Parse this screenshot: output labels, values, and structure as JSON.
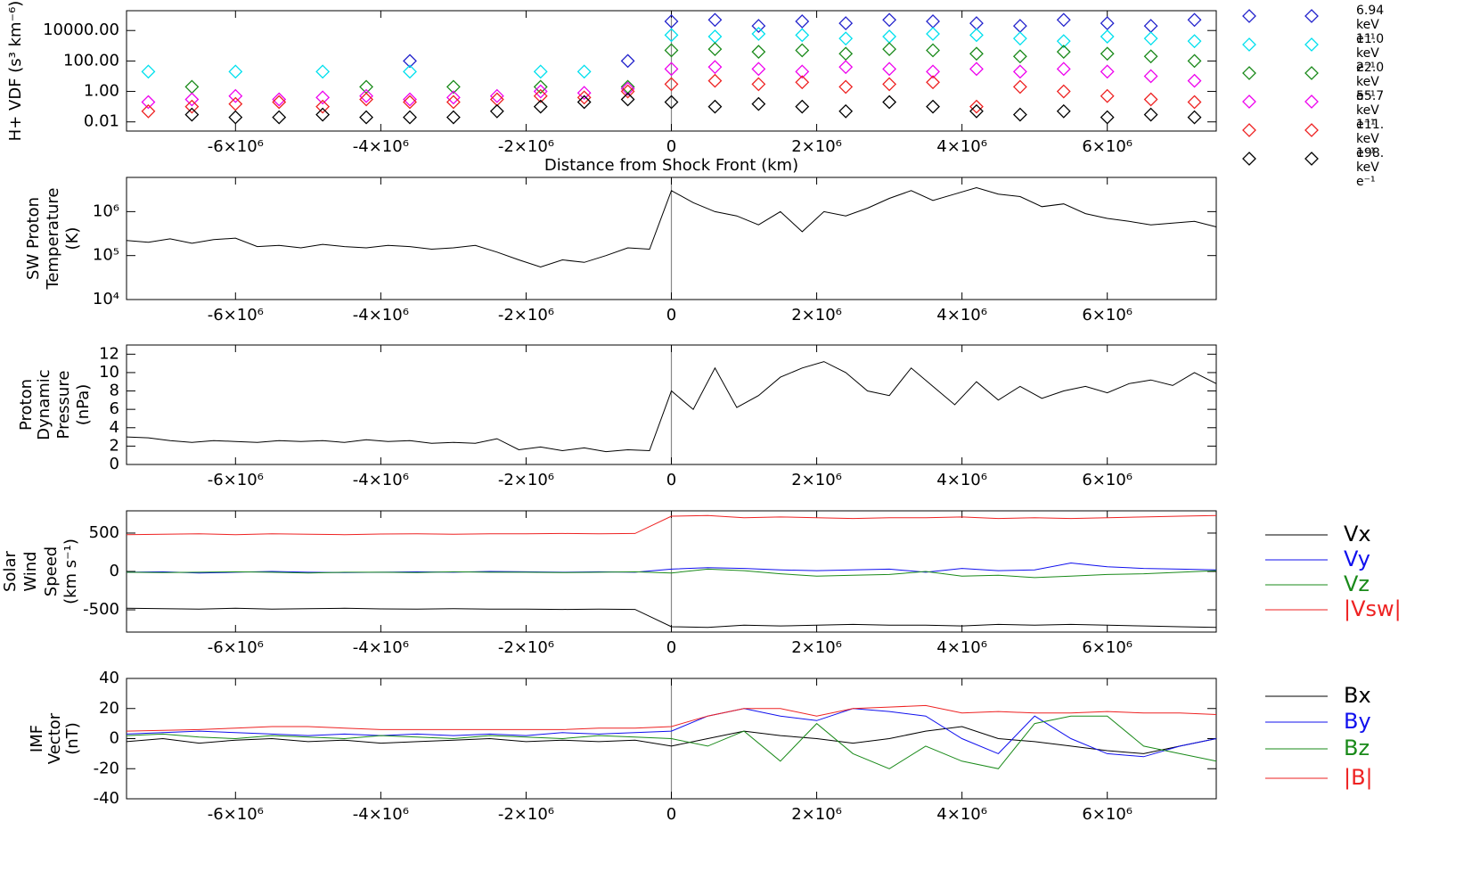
{
  "chart_data": [
    {
      "type": "scatter",
      "log_y": true,
      "y_label": [
        "H+ VDF (s³ km⁻⁶)"
      ],
      "x_label": "Distance from Shock Front (km)",
      "xlim": [
        -7500000.0,
        7500000.0
      ],
      "xticks": [
        {
          "value": -6000000.0,
          "label": "-6×10⁶"
        },
        {
          "value": -4000000.0,
          "label": "-4×10⁶"
        },
        {
          "value": -2000000.0,
          "label": "-2×10⁶"
        },
        0,
        {
          "value": 2000000.0,
          "label": "2×10⁶"
        },
        {
          "value": 4000000.0,
          "label": "4×10⁶"
        },
        {
          "value": 6000000.0,
          "label": "6×10⁶"
        }
      ],
      "ylim": [
        0.0025,
        200000
      ],
      "yticks": [
        0.01,
        {
          "value": 1,
          "label": "1.00"
        },
        {
          "value": 100,
          "label": "100.00"
        },
        {
          "value": 10000,
          "label": "10000.00"
        }
      ],
      "x": [
        -7200000.0,
        -6600000.0,
        -6000000.0,
        -5400000.0,
        -4800000.0,
        -4200000.0,
        -3600000.0,
        -3000000.0,
        -2400000.0,
        -1800000.0,
        -1200000.0,
        -600000.0,
        0,
        600000.0,
        1200000.0,
        1800000.0,
        2400000.0,
        3000000.0,
        3600000.0,
        4200000.0,
        4800000.0,
        5400000.0,
        6000000.0,
        6600000.0,
        7200000.0
      ],
      "series": [
        {
          "name": "6.94 keV e⁻¹",
          "color": "#2222cc",
          "values": [
            null,
            null,
            null,
            null,
            null,
            null,
            100,
            null,
            null,
            null,
            null,
            100,
            40000,
            50000,
            20000,
            40000,
            30000,
            50000,
            40000,
            30000,
            20000,
            50000,
            30000,
            20000,
            50000
          ]
        },
        {
          "name": "11.0 keV e⁻¹",
          "color": "#00e0ee",
          "values": [
            20,
            null,
            20,
            null,
            20,
            null,
            20,
            null,
            null,
            20,
            20,
            null,
            5000,
            4000,
            6000,
            5000,
            3000,
            4000,
            6000,
            5000,
            3000,
            2000,
            4000,
            3000,
            2000
          ]
        },
        {
          "name": "22.0 keV e⁻¹",
          "color": "#1a8a1a",
          "values": [
            null,
            2,
            null,
            null,
            null,
            2,
            null,
            2,
            null,
            2,
            null,
            2,
            500,
            600,
            400,
            500,
            300,
            600,
            500,
            300,
            200,
            400,
            300,
            200,
            100
          ]
        },
        {
          "name": "55.7 keV e⁻¹",
          "color": "#ee00ee",
          "values": [
            0.2,
            0.3,
            0.5,
            0.3,
            0.4,
            0.5,
            0.3,
            0.4,
            0.5,
            1,
            0.8,
            1.5,
            30,
            40,
            30,
            20,
            40,
            30,
            20,
            30,
            20,
            30,
            20,
            10,
            5
          ]
        },
        {
          "name": "111. keV e⁻¹",
          "color": "#ee2222",
          "values": [
            0.05,
            0.1,
            0.15,
            0.2,
            0.1,
            0.3,
            0.2,
            0.2,
            0.3,
            0.5,
            0.4,
            1,
            3,
            5,
            3,
            4,
            2,
            3,
            4,
            0.1,
            2,
            1,
            0.5,
            0.3,
            0.2
          ]
        },
        {
          "name": "198. keV e⁻¹",
          "color": "#000000",
          "values": [
            null,
            0.03,
            0.02,
            0.02,
            0.03,
            0.02,
            0.02,
            0.02,
            0.05,
            0.1,
            0.2,
            0.3,
            0.2,
            0.1,
            0.15,
            0.1,
            0.05,
            0.2,
            0.1,
            0.05,
            0.03,
            0.05,
            0.02,
            0.03,
            0.02
          ]
        }
      ]
    },
    {
      "type": "line",
      "log_y": true,
      "y_label": [
        "SW Proton",
        "Temperature",
        "(K)"
      ],
      "xlim": [
        -7500000.0,
        7500000.0
      ],
      "xticks": [
        {
          "value": -6000000.0,
          "label": "-6×10⁶"
        },
        {
          "value": -4000000.0,
          "label": "-4×10⁶"
        },
        {
          "value": -2000000.0,
          "label": "-2×10⁶"
        },
        0,
        {
          "value": 2000000.0,
          "label": "2×10⁶"
        },
        {
          "value": 4000000.0,
          "label": "4×10⁶"
        },
        {
          "value": 6000000.0,
          "label": "6×10⁶"
        }
      ],
      "ylim": [
        10000,
        6000000
      ],
      "yticks": [
        {
          "value": 10000,
          "label": "10⁴"
        },
        {
          "value": 100000,
          "label": "10⁵"
        },
        {
          "value": 1000000,
          "label": "10⁶"
        }
      ],
      "x": [
        -7500000.0,
        -7200000.0,
        -6900000.0,
        -6600000.0,
        -6300000.0,
        -6000000.0,
        -5700000.0,
        -5400000.0,
        -5100000.0,
        -4800000.0,
        -4500000.0,
        -4200000.0,
        -3900000.0,
        -3600000.0,
        -3300000.0,
        -3000000.0,
        -2700000.0,
        -2400000.0,
        -2100000.0,
        -1800000.0,
        -1500000.0,
        -1200000.0,
        -900000.0,
        -600000.0,
        -300000.0,
        0,
        300000.0,
        600000.0,
        900000.0,
        1200000.0,
        1500000.0,
        1800000.0,
        2100000.0,
        2400000.0,
        2700000.0,
        3000000.0,
        3300000.0,
        3600000.0,
        3900000.0,
        4200000.0,
        4500000.0,
        4800000.0,
        5100000.0,
        5400000.0,
        5700000.0,
        6000000.0,
        6300000.0,
        6600000.0,
        6900000.0,
        7200000.0,
        7500000.0
      ],
      "series": [
        {
          "color": "#000000",
          "values": [
            220000.0,
            200000.0,
            240000.0,
            190000.0,
            230000.0,
            250000.0,
            160000.0,
            170000.0,
            150000.0,
            180000.0,
            160000.0,
            150000.0,
            170000.0,
            160000.0,
            140000.0,
            150000.0,
            170000.0,
            120000.0,
            80000.0,
            55000.0,
            80000.0,
            70000.0,
            100000.0,
            150000.0,
            140000.0,
            3000000.0,
            1600000.0,
            1000000.0,
            800000.0,
            500000.0,
            1000000.0,
            350000.0,
            1000000.0,
            800000.0,
            1200000.0,
            2000000.0,
            3000000.0,
            1800000.0,
            2500000.0,
            3500000.0,
            2500000.0,
            2200000.0,
            1300000.0,
            1500000.0,
            900000.0,
            700000.0,
            600000.0,
            500000.0,
            550000.0,
            600000.0,
            450000.0
          ]
        }
      ]
    },
    {
      "type": "line",
      "y_label": [
        "Proton",
        "Dynamic",
        "Pressure",
        "(nPa)"
      ],
      "xlim": [
        -7500000.0,
        7500000.0
      ],
      "xticks": [
        {
          "value": -6000000.0,
          "label": "-6×10⁶"
        },
        {
          "value": -4000000.0,
          "label": "-4×10⁶"
        },
        {
          "value": -2000000.0,
          "label": "-2×10⁶"
        },
        0,
        {
          "value": 2000000.0,
          "label": "2×10⁶"
        },
        {
          "value": 4000000.0,
          "label": "4×10⁶"
        },
        {
          "value": 6000000.0,
          "label": "6×10⁶"
        }
      ],
      "ylim": [
        0,
        13
      ],
      "yticks": [
        0,
        2,
        4,
        6,
        8,
        10,
        12
      ],
      "x": [
        -7500000.0,
        -7200000.0,
        -6900000.0,
        -6600000.0,
        -6300000.0,
        -6000000.0,
        -5700000.0,
        -5400000.0,
        -5100000.0,
        -4800000.0,
        -4500000.0,
        -4200000.0,
        -3900000.0,
        -3600000.0,
        -3300000.0,
        -3000000.0,
        -2700000.0,
        -2400000.0,
        -2100000.0,
        -1800000.0,
        -1500000.0,
        -1200000.0,
        -900000.0,
        -600000.0,
        -300000.0,
        0,
        300000.0,
        600000.0,
        900000.0,
        1200000.0,
        1500000.0,
        1800000.0,
        2100000.0,
        2400000.0,
        2700000.0,
        3000000.0,
        3300000.0,
        3600000.0,
        3900000.0,
        4200000.0,
        4500000.0,
        4800000.0,
        5100000.0,
        5400000.0,
        5700000.0,
        6000000.0,
        6300000.0,
        6600000.0,
        6900000.0,
        7200000.0,
        7500000.0
      ],
      "series": [
        {
          "color": "#000000",
          "values": [
            3.0,
            2.9,
            2.6,
            2.4,
            2.6,
            2.5,
            2.4,
            2.6,
            2.5,
            2.6,
            2.4,
            2.7,
            2.5,
            2.6,
            2.3,
            2.4,
            2.3,
            2.8,
            1.6,
            1.9,
            1.5,
            1.8,
            1.4,
            1.6,
            1.5,
            8.0,
            6.0,
            10.5,
            6.2,
            7.5,
            9.5,
            10.5,
            11.2,
            10.0,
            8.0,
            7.5,
            10.5,
            8.5,
            6.5,
            9.0,
            7.0,
            8.5,
            7.2,
            8.0,
            8.5,
            7.8,
            8.8,
            9.2,
            8.6,
            10.0,
            8.8
          ]
        }
      ]
    },
    {
      "type": "line",
      "y_label": [
        "Solar",
        "Wind",
        "Speed",
        "(km s⁻¹)"
      ],
      "xlim": [
        -7500000.0,
        7500000.0
      ],
      "xticks": [
        {
          "value": -6000000.0,
          "label": "-6×10⁶"
        },
        {
          "value": -4000000.0,
          "label": "-4×10⁶"
        },
        {
          "value": -2000000.0,
          "label": "-2×10⁶"
        },
        0,
        {
          "value": 2000000.0,
          "label": "2×10⁶"
        },
        {
          "value": 4000000.0,
          "label": "4×10⁶"
        },
        {
          "value": 6000000.0,
          "label": "6×10⁶"
        }
      ],
      "ylim": [
        -790,
        790
      ],
      "yticks": [
        -500,
        0,
        500
      ],
      "x": [
        -7500000.0,
        -7000000.0,
        -6500000.0,
        -6000000.0,
        -5500000.0,
        -5000000.0,
        -4500000.0,
        -4000000.0,
        -3500000.0,
        -3000000.0,
        -2500000.0,
        -2000000.0,
        -1500000.0,
        -1000000.0,
        -500000.0,
        0,
        500000.0,
        1000000.0,
        1500000.0,
        2000000.0,
        2500000.0,
        3000000.0,
        3500000.0,
        4000000.0,
        4500000.0,
        5000000.0,
        5500000.0,
        6000000.0,
        6500000.0,
        7000000.0,
        7500000.0
      ],
      "series": [
        {
          "name": "Vx",
          "color": "#000000",
          "values": [
            -480,
            -485,
            -490,
            -480,
            -490,
            -485,
            -480,
            -488,
            -490,
            -485,
            -490,
            -492,
            -495,
            -490,
            -495,
            -720,
            -730,
            -700,
            -710,
            -700,
            -690,
            -700,
            -700,
            -710,
            -690,
            -700,
            -690,
            -700,
            -710,
            -720,
            -730
          ]
        },
        {
          "name": "Vy",
          "color": "#1010ee",
          "values": [
            -10,
            -5,
            -20,
            -10,
            0,
            -10,
            -15,
            -10,
            -5,
            -10,
            0,
            -5,
            -10,
            -5,
            -10,
            30,
            50,
            40,
            20,
            10,
            20,
            30,
            -10,
            40,
            10,
            20,
            110,
            60,
            40,
            30,
            20
          ]
        },
        {
          "name": "Vz",
          "color": "#1a8a1a",
          "values": [
            -10,
            -15,
            -10,
            -5,
            -10,
            -20,
            -10,
            -10,
            -15,
            -5,
            -10,
            -10,
            -15,
            -10,
            -5,
            -20,
            30,
            10,
            -30,
            -60,
            -50,
            -40,
            0,
            -60,
            -50,
            -80,
            -60,
            -40,
            -30,
            -10,
            10
          ]
        },
        {
          "name": "|Vsw|",
          "color": "#ee2222",
          "values": [
            480,
            485,
            490,
            480,
            490,
            485,
            480,
            488,
            490,
            485,
            490,
            492,
            495,
            490,
            495,
            720,
            730,
            700,
            710,
            700,
            690,
            700,
            700,
            710,
            690,
            700,
            690,
            700,
            710,
            720,
            730
          ]
        }
      ]
    },
    {
      "type": "line",
      "y_label": [
        "IMF",
        "Vector",
        "(nT)"
      ],
      "xlim": [
        -7500000.0,
        7500000.0
      ],
      "xticks": [
        {
          "value": -6000000.0,
          "label": "-6×10⁶"
        },
        {
          "value": -4000000.0,
          "label": "-4×10⁶"
        },
        {
          "value": -2000000.0,
          "label": "-2×10⁶"
        },
        0,
        {
          "value": 2000000.0,
          "label": "2×10⁶"
        },
        {
          "value": 4000000.0,
          "label": "4×10⁶"
        },
        {
          "value": 6000000.0,
          "label": "6×10⁶"
        }
      ],
      "ylim": [
        -40,
        40
      ],
      "yticks": [
        -40,
        -20,
        0,
        20,
        40
      ],
      "x": [
        -7500000.0,
        -7000000.0,
        -6500000.0,
        -6000000.0,
        -5500000.0,
        -5000000.0,
        -4500000.0,
        -4000000.0,
        -3500000.0,
        -3000000.0,
        -2500000.0,
        -2000000.0,
        -1500000.0,
        -1000000.0,
        -500000.0,
        0,
        500000.0,
        1000000.0,
        1500000.0,
        2000000.0,
        2500000.0,
        3000000.0,
        3500000.0,
        4000000.0,
        4500000.0,
        5000000.0,
        5500000.0,
        6000000.0,
        6500000.0,
        7000000.0,
        7500000.0
      ],
      "series": [
        {
          "name": "Bx",
          "color": "#000000",
          "values": [
            -2,
            0,
            -3,
            -1,
            0,
            -2,
            -1,
            -3,
            -2,
            -1,
            0,
            -2,
            -1,
            -2,
            -1,
            -5,
            0,
            5,
            2,
            0,
            -3,
            0,
            5,
            8,
            0,
            -2,
            -5,
            -8,
            -10,
            -5,
            0
          ]
        },
        {
          "name": "By",
          "color": "#1010ee",
          "values": [
            3,
            4,
            5,
            4,
            3,
            2,
            3,
            2,
            3,
            2,
            3,
            2,
            4,
            3,
            4,
            5,
            15,
            20,
            15,
            12,
            20,
            18,
            15,
            0,
            -10,
            15,
            0,
            -10,
            -12,
            -5,
            0
          ]
        },
        {
          "name": "Bz",
          "color": "#1a8a1a",
          "values": [
            2,
            3,
            1,
            0,
            2,
            1,
            0,
            2,
            1,
            0,
            2,
            1,
            0,
            2,
            1,
            0,
            -5,
            5,
            -15,
            10,
            -10,
            -20,
            -5,
            -15,
            -20,
            10,
            15,
            15,
            -5,
            -10,
            -15
          ]
        },
        {
          "name": "|B|",
          "color": "#ee2222",
          "values": [
            5,
            5.5,
            6,
            7,
            8,
            8,
            7,
            6,
            6,
            6,
            6,
            6,
            6,
            7,
            7,
            8,
            15,
            20,
            20,
            15,
            20,
            21,
            22,
            17,
            18,
            17,
            17,
            18,
            17,
            17,
            16
          ]
        }
      ]
    }
  ]
}
